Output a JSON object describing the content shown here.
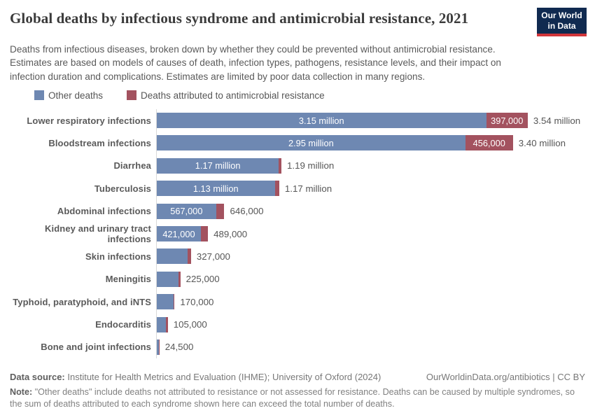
{
  "header": {
    "title": "Global deaths by infectious syndrome and antimicrobial resistance, 2021",
    "subtitle": "Deaths from infectious diseases, broken down by whether they could be prevented without antimicrobial resistance. Estimates are based on models of causes of death, infection types, pathogens, resistance levels, and their impact on infection duration and complications. Estimates are limited by poor data collection in many regions.",
    "logo": {
      "line1": "Our World",
      "line2": "in Data"
    }
  },
  "legend": [
    {
      "label": "Other deaths"
    },
    {
      "label": "Deaths attributed to antimicrobial resistance"
    }
  ],
  "colors": {
    "bar_other": "#6e88b2",
    "bar_amr": "#a3525f",
    "logo_bg": "#102a50",
    "logo_stripe": "#d1353a",
    "axis_line": "#d9d9d9"
  },
  "chart_data": {
    "type": "bar",
    "orientation": "horizontal",
    "title": "Global deaths by infectious syndrome and antimicrobial resistance, 2021",
    "unit": "deaths",
    "x_axis_range_million": [
      0,
      3.6
    ],
    "grid": false,
    "legend_position": "top-left",
    "series_names": [
      "Other deaths",
      "Deaths attributed to antimicrobial resistance"
    ],
    "rows": [
      {
        "category": "Lower respiratory infections",
        "other": 3150000,
        "amr": 397000,
        "total": 3540000,
        "other_label": "3.15 million",
        "amr_label": "397,000",
        "total_label": "3.54 million"
      },
      {
        "category": "Bloodstream infections",
        "other": 2950000,
        "amr": 456000,
        "total": 3400000,
        "other_label": "2.95 million",
        "amr_label": "456,000",
        "total_label": "3.40 million"
      },
      {
        "category": "Diarrhea",
        "other": 1167000,
        "amr": 25000,
        "total": 1190000,
        "other_label": "1.17 million",
        "amr_label": "",
        "total_label": "1.19 million"
      },
      {
        "category": "Tuberculosis",
        "other": 1128000,
        "amr": 43000,
        "total": 1170000,
        "other_label": "1.13 million",
        "amr_label": "",
        "total_label": "1.17 million"
      },
      {
        "category": "Abdominal infections",
        "other": 567000,
        "amr": 79000,
        "total": 646000,
        "other_label": "567,000",
        "amr_label": "",
        "total_label": "646,000"
      },
      {
        "category": "Kidney and urinary tract infections",
        "other": 421000,
        "amr": 68000,
        "total": 489000,
        "other_label": "421,000",
        "amr_label": "",
        "total_label": "489,000"
      },
      {
        "category": "Skin infections",
        "other": 297000,
        "amr": 30000,
        "total": 327000,
        "other_label": "",
        "amr_label": "",
        "total_label": "327,000"
      },
      {
        "category": "Meningitis",
        "other": 207000,
        "amr": 18000,
        "total": 225000,
        "other_label": "",
        "amr_label": "",
        "total_label": "225,000"
      },
      {
        "category": "Typhoid, paratyphoid, and iNTS",
        "other": 157000,
        "amr": 13000,
        "total": 170000,
        "other_label": "",
        "amr_label": "",
        "total_label": "170,000"
      },
      {
        "category": "Endocarditis",
        "other": 89000,
        "amr": 16000,
        "total": 105000,
        "other_label": "",
        "amr_label": "",
        "total_label": "105,000"
      },
      {
        "category": "Bone and joint infections",
        "other": 20500,
        "amr": 4000,
        "total": 24500,
        "other_label": "",
        "amr_label": "",
        "total_label": "24,500"
      }
    ]
  },
  "footer": {
    "data_source_label": "Data source:",
    "data_source_text": "Institute for Health Metrics and Evaluation (IHME); University of Oxford (2024)",
    "attribution": "OurWorldinData.org/antibiotics | CC BY",
    "note_label": "Note:",
    "note_text": "\"Other deaths\" include deaths not attributed to resistance or not assessed for resistance. Deaths can be caused by multiple syndromes, so the sum of deaths attributed to each syndrome shown here can exceed the total number of deaths."
  }
}
